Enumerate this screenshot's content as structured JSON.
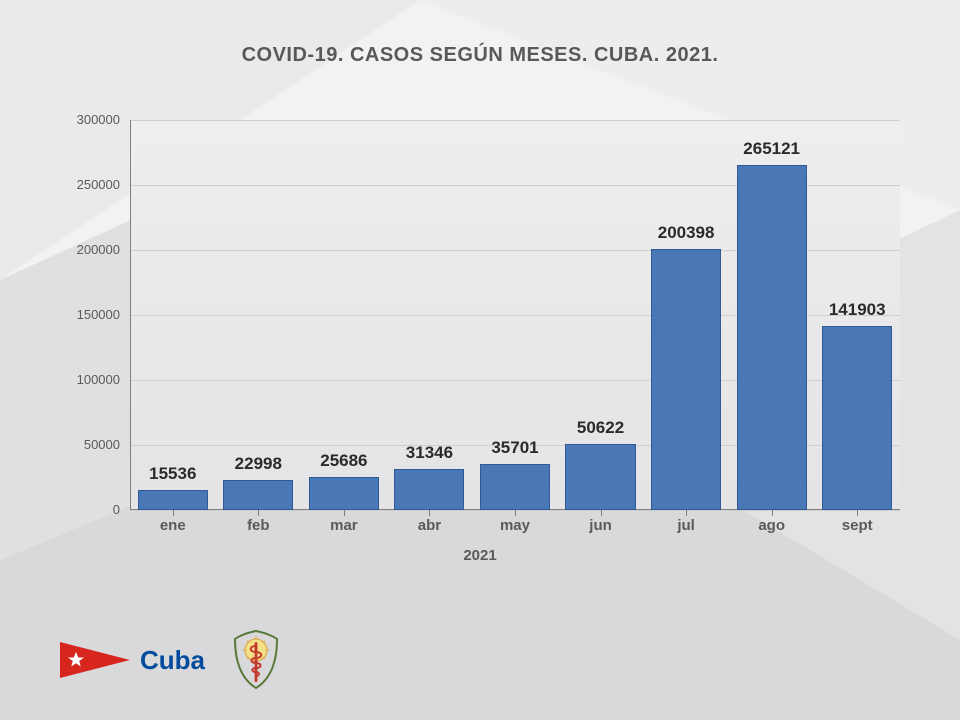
{
  "title": {
    "text": "COVID-19. CASOS SEGÚN MESES. CUBA. 2021.",
    "fontsize": 20,
    "color": "#595959"
  },
  "chart": {
    "type": "bar",
    "categories": [
      "ene",
      "feb",
      "mar",
      "abr",
      "may",
      "jun",
      "jul",
      "ago",
      "sept"
    ],
    "values": [
      15536,
      22998,
      25686,
      31346,
      35701,
      50622,
      200398,
      265121,
      141903
    ],
    "bar_color": "#4a78b6",
    "bar_border_color": "#2f5a94",
    "bar_border_width": 1,
    "bar_width_ratio": 0.82,
    "label_fontsize": 17,
    "label_color": "#2a2a2a",
    "ylim": [
      0,
      300000
    ],
    "ytick_step": 50000,
    "ytick_labels": [
      "0",
      "50000",
      "100000",
      "150000",
      "200000",
      "250000",
      "300000"
    ],
    "tick_label_color": "#5a5a5a",
    "tick_fontsize": 13,
    "xtick_fontsize": 15,
    "grid_color": "#cfcfd1",
    "axis_color": "#808080",
    "plot_bg_top": "#eeeef0",
    "plot_bg_bottom": "#e4e4e6",
    "xaxis_title": "2021"
  },
  "background": {
    "base": "#f2f2f2",
    "poly_light": "#eeeeef",
    "poly_mid": "#e2e2e4",
    "poly_dark": "#d7d7d9"
  },
  "footer": {
    "cuba_label": "Cuba",
    "cuba_label_color": "#004b9b",
    "flag_red": "#d7261e",
    "flag_star": "#ffffff",
    "badge_gold": "#d9a43a",
    "badge_red": "#c23a2e",
    "badge_green": "#5a7a3a"
  }
}
